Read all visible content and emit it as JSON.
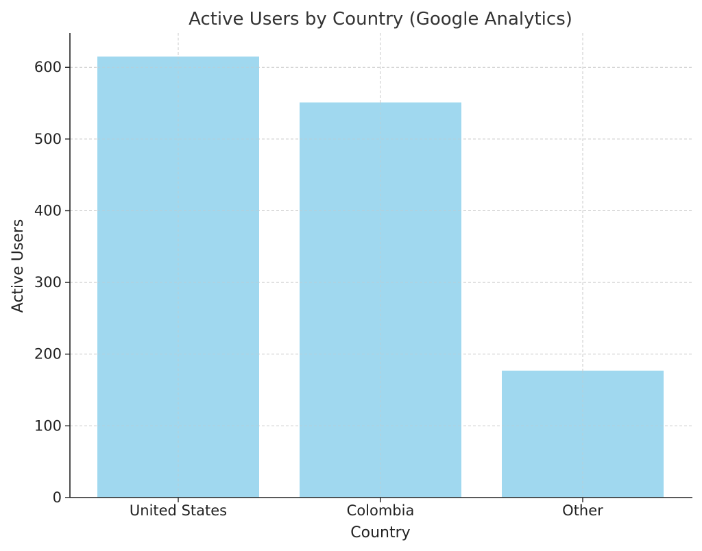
{
  "chart_data": {
    "type": "bar",
    "title": "Active Users by Country (Google Analytics)",
    "xlabel": "Country",
    "ylabel": "Active Users",
    "categories": [
      "United States",
      "Colombia",
      "Other"
    ],
    "values": [
      615,
      551,
      177
    ],
    "ylim": [
      0,
      648
    ],
    "yticks": [
      0,
      100,
      200,
      300,
      400,
      500,
      600
    ],
    "grid": true,
    "bar_color": "#a0d8ef"
  }
}
